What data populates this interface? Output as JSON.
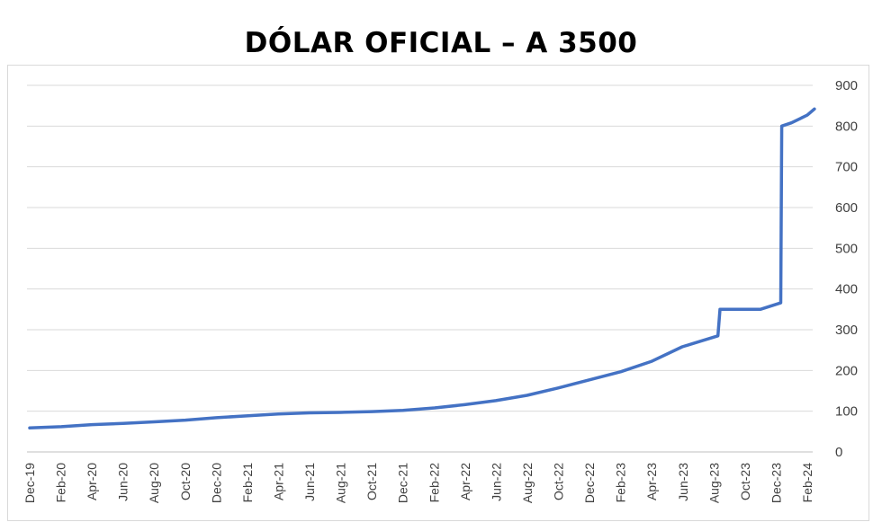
{
  "chart_data": {
    "type": "line",
    "title": "DÓLAR OFICIAL – A 3500",
    "xlabel": "",
    "ylabel": "",
    "ylim": [
      0,
      900
    ],
    "yticks": [
      0,
      100,
      200,
      300,
      400,
      500,
      600,
      700,
      800,
      900
    ],
    "grid": true,
    "legend": "none",
    "line_color": "#4472C4",
    "x_tick_labels": [
      "Dec-19",
      "Feb-20",
      "Apr-20",
      "Jun-20",
      "Aug-20",
      "Oct-20",
      "Dec-20",
      "Feb-21",
      "Apr-21",
      "Jun-21",
      "Aug-21",
      "Oct-21",
      "Dec-21",
      "Feb-22",
      "Apr-22",
      "Jun-22",
      "Aug-22",
      "Oct-22",
      "Dec-22",
      "Feb-23",
      "Apr-23",
      "Jun-23",
      "Aug-23",
      "Oct-23",
      "Dec-23",
      "Feb-24"
    ],
    "series": [
      {
        "x": [
          "2019-12-01",
          "2020-02-01",
          "2020-04-01",
          "2020-06-01",
          "2020-08-01",
          "2020-10-01",
          "2020-12-01",
          "2021-02-01",
          "2021-04-01",
          "2021-06-01",
          "2021-08-01",
          "2021-10-01",
          "2021-12-01",
          "2022-02-01",
          "2022-04-01",
          "2022-06-01",
          "2022-08-01",
          "2022-10-01",
          "2022-12-01",
          "2023-02-01",
          "2023-04-01",
          "2023-06-01",
          "2023-08-10",
          "2023-08-14",
          "2023-10-01",
          "2023-11-01",
          "2023-12-11",
          "2023-12-13",
          "2024-01-01",
          "2024-02-01",
          "2024-02-15"
        ],
        "y": [
          59,
          62,
          67,
          70,
          74,
          78,
          84,
          89,
          93,
          96,
          97,
          99,
          102,
          108,
          116,
          126,
          139,
          157,
          177,
          197,
          222,
          258,
          285,
          350,
          350,
          350,
          366,
          800,
          808,
          827,
          842
        ]
      }
    ]
  }
}
